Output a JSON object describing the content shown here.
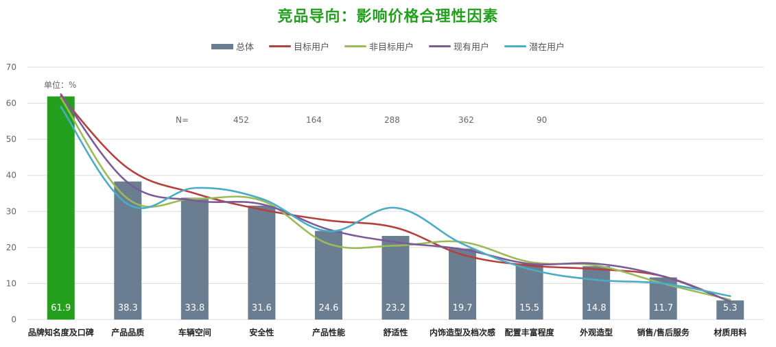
{
  "chart_data": {
    "type": "bar",
    "title": "竞品导向：影响价格合理性因素",
    "unit_label": "单位：%",
    "categories": [
      "品牌知名度及口碑",
      "产品品质",
      "车辆空间",
      "安全性",
      "产品性能",
      "舒适性",
      "内饰造型及档次感",
      "配置丰富程度",
      "外观造型",
      "销售/售后服务",
      "材质用料"
    ],
    "ylim": [
      0,
      70
    ],
    "yticks": [
      0,
      10,
      20,
      30,
      40,
      50,
      60,
      70
    ],
    "grid": true,
    "legend_position": "top",
    "n_labels": {
      "prefix": "N=",
      "values": [
        "452",
        "164",
        "288",
        "362",
        "90"
      ]
    },
    "bar_series": {
      "name": "总体",
      "values": [
        61.9,
        38.3,
        33.8,
        31.6,
        24.6,
        23.2,
        19.7,
        15.5,
        14.8,
        11.7,
        5.3
      ],
      "value_labels": [
        "61.9",
        "38.3",
        "33.8",
        "31.6",
        "24.6",
        "23.2",
        "19.7",
        "15.5",
        "14.8",
        "11.7",
        "5.3"
      ],
      "highlight_index": 0
    },
    "line_series": [
      {
        "name": "目标用户",
        "values": [
          62.0,
          42.0,
          35.0,
          30.5,
          27.5,
          25.5,
          18.0,
          15.0,
          14.0,
          12.0,
          5.0
        ]
      },
      {
        "name": "非目标用户",
        "values": [
          61.5,
          33.5,
          33.5,
          33.0,
          21.0,
          20.5,
          21.5,
          16.0,
          15.0,
          10.0,
          5.5
        ]
      },
      {
        "name": "现有用户",
        "values": [
          62.5,
          38.0,
          33.0,
          32.0,
          25.0,
          21.5,
          19.5,
          15.5,
          15.5,
          12.0,
          5.0
        ]
      },
      {
        "name": "潜在用户",
        "values": [
          59.0,
          32.0,
          36.5,
          33.5,
          24.5,
          31.0,
          21.0,
          14.0,
          11.0,
          10.0,
          6.5
        ]
      }
    ]
  },
  "colors": {
    "title": "#22a01e",
    "bar": "#6a7d91",
    "highlight_bar": "#22a01e",
    "lines": [
      "#b5403e",
      "#9bbb59",
      "#7b5a99",
      "#4aacc5"
    ],
    "grid": "#d9d9d9",
    "axis_text": "#666666",
    "category_text": "#222222",
    "value_label": "#ffffff"
  }
}
